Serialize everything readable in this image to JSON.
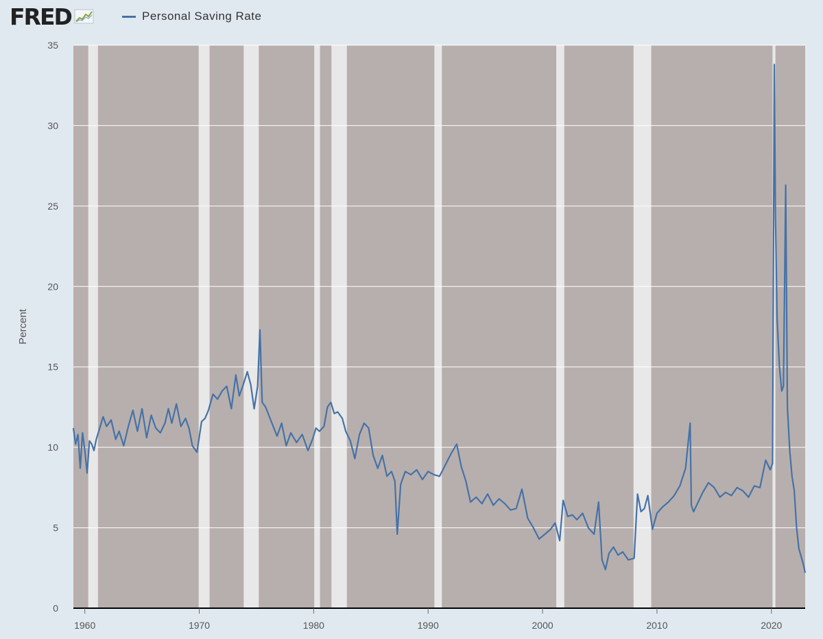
{
  "brand": {
    "name": "FRED",
    "icon": "fred-trend-icon"
  },
  "colors": {
    "page_bg": "#e1e9f0",
    "plot_bg": "#b7afad",
    "recession": "#e8e8e8",
    "series": "#4572a7",
    "grid": "#ffffff",
    "axis": "#000000"
  },
  "chart_data": {
    "type": "line",
    "title": "",
    "xlabel": "",
    "ylabel": "Percent",
    "xlim": [
      1959.0,
      2022.95
    ],
    "ylim": [
      0,
      35
    ],
    "x_ticks": [
      1960,
      1970,
      1980,
      1990,
      2000,
      2010,
      2020
    ],
    "y_ticks": [
      0,
      5,
      10,
      15,
      20,
      25,
      30,
      35
    ],
    "grid": true,
    "legend": "top-left",
    "recessions": [
      [
        1960.3,
        1961.15
      ],
      [
        1969.95,
        1970.9
      ],
      [
        1973.88,
        1975.2
      ],
      [
        1980.05,
        1980.55
      ],
      [
        1981.55,
        1982.9
      ],
      [
        1990.55,
        1991.2
      ],
      [
        2001.2,
        2001.9
      ],
      [
        2007.95,
        2009.5
      ],
      [
        2020.1,
        2020.35
      ]
    ],
    "series": [
      {
        "name": "Personal Saving Rate",
        "x": [
          1959.0,
          1959.2,
          1959.4,
          1959.6,
          1959.8,
          1960.0,
          1960.2,
          1960.4,
          1960.6,
          1960.8,
          1961.0,
          1961.3,
          1961.6,
          1961.9,
          1962.3,
          1962.7,
          1963.0,
          1963.4,
          1963.8,
          1964.2,
          1964.6,
          1965.0,
          1965.4,
          1965.8,
          1966.2,
          1966.6,
          1967.0,
          1967.3,
          1967.6,
          1968.0,
          1968.4,
          1968.8,
          1969.1,
          1969.4,
          1969.8,
          1970.2,
          1970.5,
          1970.8,
          1971.2,
          1971.6,
          1972.0,
          1972.4,
          1972.8,
          1973.2,
          1973.5,
          1973.8,
          1974.2,
          1974.5,
          1974.8,
          1975.1,
          1975.3,
          1975.5,
          1975.8,
          1976.3,
          1976.8,
          1977.2,
          1977.6,
          1978.0,
          1978.5,
          1979.0,
          1979.5,
          1979.9,
          1980.2,
          1980.5,
          1980.9,
          1981.2,
          1981.5,
          1981.8,
          1982.1,
          1982.5,
          1982.8,
          1983.2,
          1983.6,
          1984.0,
          1984.4,
          1984.8,
          1985.2,
          1985.6,
          1986.0,
          1986.4,
          1986.8,
          1987.1,
          1987.3,
          1987.6,
          1988.0,
          1988.5,
          1989.0,
          1989.5,
          1990.0,
          1990.5,
          1991.0,
          1991.5,
          1992.0,
          1992.5,
          1992.9,
          1993.3,
          1993.7,
          1994.2,
          1994.7,
          1995.2,
          1995.7,
          1996.2,
          1996.7,
          1997.2,
          1997.7,
          1998.2,
          1998.7,
          1999.2,
          1999.7,
          2000.2,
          2000.7,
          2001.1,
          2001.5,
          2001.8,
          2002.2,
          2002.6,
          2003.0,
          2003.5,
          2004.0,
          2004.5,
          2004.9,
          2005.2,
          2005.5,
          2005.8,
          2006.2,
          2006.6,
          2007.0,
          2007.5,
          2008.0,
          2008.3,
          2008.6,
          2008.9,
          2009.2,
          2009.6,
          2010.0,
          2010.5,
          2011.0,
          2011.5,
          2012.0,
          2012.5,
          2012.9,
          2013.0,
          2013.2,
          2013.6,
          2014.0,
          2014.5,
          2015.0,
          2015.5,
          2016.0,
          2016.5,
          2017.0,
          2017.5,
          2018.0,
          2018.5,
          2019.0,
          2019.5,
          2019.9,
          2020.1,
          2020.25,
          2020.35,
          2020.5,
          2020.7,
          2020.9,
          2021.05,
          2021.15,
          2021.25,
          2021.4,
          2021.6,
          2021.8,
          2022.0,
          2022.2,
          2022.4,
          2022.6,
          2022.8,
          2022.95
        ],
        "values": [
          11.2,
          10.2,
          10.8,
          8.7,
          10.9,
          9.8,
          8.4,
          10.4,
          10.2,
          9.8,
          10.5,
          11.2,
          11.9,
          11.3,
          11.7,
          10.5,
          11.0,
          10.1,
          11.3,
          12.3,
          11.0,
          12.4,
          10.6,
          12.0,
          11.2,
          10.9,
          11.5,
          12.4,
          11.5,
          12.7,
          11.3,
          11.8,
          11.2,
          10.1,
          9.7,
          11.6,
          11.8,
          12.3,
          13.3,
          13.0,
          13.5,
          13.8,
          12.4,
          14.5,
          13.2,
          13.8,
          14.7,
          13.9,
          12.4,
          13.8,
          17.3,
          12.8,
          12.5,
          11.6,
          10.7,
          11.5,
          10.1,
          10.9,
          10.3,
          10.8,
          9.8,
          10.5,
          11.2,
          11.0,
          11.3,
          12.5,
          12.8,
          12.1,
          12.2,
          11.8,
          11.0,
          10.4,
          9.3,
          10.8,
          11.5,
          11.2,
          9.5,
          8.7,
          9.5,
          8.2,
          8.5,
          7.9,
          4.6,
          7.7,
          8.5,
          8.3,
          8.6,
          8.0,
          8.5,
          8.3,
          8.2,
          8.9,
          9.6,
          10.2,
          8.8,
          7.9,
          6.6,
          6.9,
          6.5,
          7.1,
          6.4,
          6.8,
          6.5,
          6.1,
          6.2,
          7.4,
          5.6,
          5.0,
          4.3,
          4.6,
          4.9,
          5.3,
          4.2,
          6.7,
          5.7,
          5.8,
          5.5,
          5.9,
          5.0,
          4.6,
          6.6,
          3.0,
          2.4,
          3.4,
          3.8,
          3.3,
          3.5,
          3.0,
          3.1,
          7.1,
          6.0,
          6.2,
          7.0,
          4.9,
          5.9,
          6.3,
          6.6,
          7.0,
          7.6,
          8.7,
          11.5,
          6.4,
          6.0,
          6.6,
          7.2,
          7.8,
          7.5,
          6.9,
          7.2,
          7.0,
          7.5,
          7.3,
          6.9,
          7.6,
          7.5,
          9.2,
          8.6,
          9.0,
          33.8,
          24.5,
          18.0,
          15.0,
          13.5,
          13.8,
          20.0,
          26.3,
          12.5,
          9.8,
          8.2,
          7.3,
          5.0,
          3.7,
          3.2,
          2.7,
          2.2
        ]
      }
    ]
  }
}
